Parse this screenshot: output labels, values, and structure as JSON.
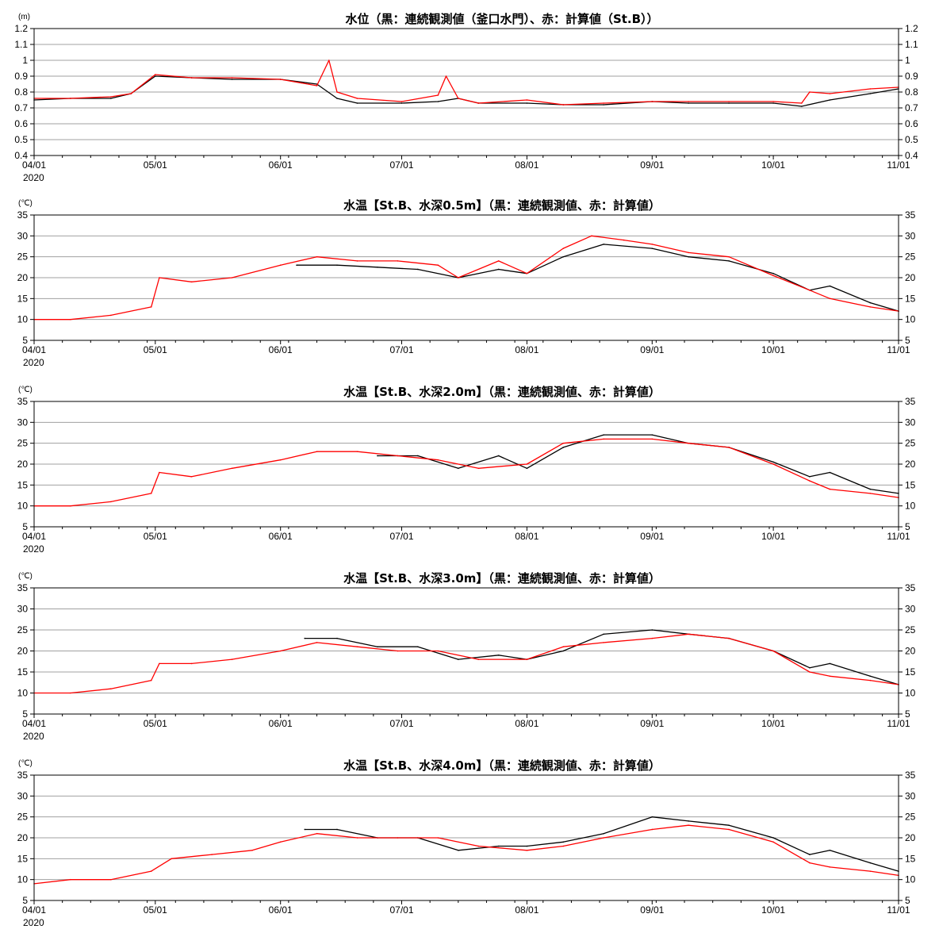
{
  "chart_data": [
    {
      "type": "line",
      "title": "水位（黒：連続観測値（釜口水門）、赤：計算値（St.B））",
      "ylabel": "(m)",
      "ylim": [
        0.4,
        1.2
      ],
      "yticks": [
        0.4,
        0.5,
        0.6,
        0.7,
        0.8,
        0.9,
        1.0,
        1.1,
        1.2
      ],
      "ytick_labels": [
        "0.4",
        "0.5",
        "0.6",
        "0.7",
        "0.8",
        "0.9",
        "1",
        "1.1",
        "1.2"
      ],
      "xlim": [
        "2020-04-01",
        "2020-11-01"
      ],
      "x_tick_labels": [
        "04/01",
        "05/01",
        "06/01",
        "07/01",
        "08/01",
        "09/01",
        "10/01",
        "11/01"
      ],
      "x_year_label": "2020",
      "grid": "horizontal",
      "series": [
        {
          "color": "#000000",
          "x": [
            "04-01",
            "04-10",
            "04-20",
            "04-25",
            "05-01",
            "05-10",
            "05-20",
            "06-01",
            "06-10",
            "06-15",
            "06-20",
            "07-01",
            "07-10",
            "07-15",
            "07-20",
            "08-01",
            "08-10",
            "08-20",
            "09-01",
            "09-10",
            "09-20",
            "10-01",
            "10-08",
            "10-15",
            "10-25",
            "11-01"
          ],
          "y": [
            0.75,
            0.76,
            0.76,
            0.79,
            0.9,
            0.89,
            0.88,
            0.88,
            0.85,
            0.76,
            0.73,
            0.73,
            0.74,
            0.76,
            0.73,
            0.73,
            0.72,
            0.72,
            0.74,
            0.73,
            0.73,
            0.73,
            0.71,
            0.75,
            0.79,
            0.82
          ]
        },
        {
          "color": "#ff0000",
          "x": [
            "04-01",
            "04-10",
            "04-20",
            "04-25",
            "05-01",
            "05-10",
            "05-20",
            "06-01",
            "06-10",
            "06-13",
            "06-15",
            "06-20",
            "07-01",
            "07-10",
            "07-12",
            "07-15",
            "07-20",
            "08-01",
            "08-10",
            "08-20",
            "09-01",
            "09-10",
            "09-20",
            "10-01",
            "10-08",
            "10-10",
            "10-15",
            "10-25",
            "11-01"
          ],
          "y": [
            0.76,
            0.76,
            0.77,
            0.79,
            0.91,
            0.89,
            0.89,
            0.88,
            0.84,
            1.0,
            0.8,
            0.76,
            0.74,
            0.78,
            0.9,
            0.76,
            0.73,
            0.75,
            0.72,
            0.73,
            0.74,
            0.74,
            0.74,
            0.74,
            0.73,
            0.8,
            0.79,
            0.82,
            0.83
          ]
        }
      ]
    },
    {
      "type": "line",
      "title": "水温【St.B、水深0.5m】（黒：連続観測値、赤：計算値）",
      "ylabel": "(℃)",
      "ylim": [
        5,
        35
      ],
      "yticks": [
        5,
        10,
        15,
        20,
        25,
        30,
        35
      ],
      "ytick_labels": [
        "5",
        "10",
        "15",
        "20",
        "25",
        "30",
        "35"
      ],
      "xlim": [
        "2020-04-01",
        "2020-11-01"
      ],
      "x_tick_labels": [
        "04/01",
        "05/01",
        "06/01",
        "07/01",
        "08/01",
        "09/01",
        "10/01",
        "11/01"
      ],
      "x_year_label": "2020",
      "grid": "horizontal",
      "series": [
        {
          "color": "#000000",
          "x": [
            "06-05",
            "06-15",
            "06-25",
            "07-05",
            "07-15",
            "07-25",
            "08-01",
            "08-10",
            "08-20",
            "09-01",
            "09-10",
            "09-20",
            "10-01",
            "10-10",
            "10-15",
            "10-25",
            "11-01"
          ],
          "y": [
            23,
            23,
            22.5,
            22,
            20,
            22,
            21,
            25,
            28,
            27,
            25,
            24,
            21,
            17,
            18,
            14,
            12
          ]
        },
        {
          "color": "#ff0000",
          "x": [
            "04-01",
            "04-10",
            "04-20",
            "04-30",
            "05-02",
            "05-10",
            "05-20",
            "06-01",
            "06-10",
            "06-20",
            "06-30",
            "07-10",
            "07-15",
            "07-25",
            "08-01",
            "08-10",
            "08-17",
            "08-25",
            "09-01",
            "09-10",
            "09-20",
            "10-01",
            "10-10",
            "10-15",
            "10-25",
            "11-01"
          ],
          "y": [
            10,
            10,
            11,
            13,
            20,
            19,
            20,
            23,
            25,
            24,
            24,
            23,
            20,
            24,
            21,
            27,
            30,
            29,
            28,
            26,
            25,
            20.5,
            17,
            15,
            13,
            12
          ]
        }
      ]
    },
    {
      "type": "line",
      "title": "水温【St.B、水深2.0m】（黒：連続観測値、赤：計算値）",
      "ylabel": "(℃)",
      "ylim": [
        5,
        35
      ],
      "yticks": [
        5,
        10,
        15,
        20,
        25,
        30,
        35
      ],
      "ytick_labels": [
        "5",
        "10",
        "15",
        "20",
        "25",
        "30",
        "35"
      ],
      "xlim": [
        "2020-04-01",
        "2020-11-01"
      ],
      "x_tick_labels": [
        "04/01",
        "05/01",
        "06/01",
        "07/01",
        "08/01",
        "09/01",
        "10/01",
        "11/01"
      ],
      "x_year_label": "2020",
      "grid": "horizontal",
      "series": [
        {
          "color": "#000000",
          "x": [
            "06-25",
            "07-05",
            "07-15",
            "07-25",
            "08-01",
            "08-10",
            "08-20",
            "09-01",
            "09-10",
            "09-20",
            "10-01",
            "10-10",
            "10-15",
            "10-25",
            "11-01"
          ],
          "y": [
            22,
            22,
            19,
            22,
            19,
            24,
            27,
            27,
            25,
            24,
            20.5,
            17,
            18,
            14,
            13
          ]
        },
        {
          "color": "#ff0000",
          "x": [
            "04-01",
            "04-10",
            "04-20",
            "04-30",
            "05-02",
            "05-10",
            "05-20",
            "06-01",
            "06-10",
            "06-20",
            "06-30",
            "07-10",
            "07-20",
            "08-01",
            "08-10",
            "08-20",
            "09-01",
            "09-10",
            "09-20",
            "10-01",
            "10-10",
            "10-15",
            "10-25",
            "11-01"
          ],
          "y": [
            10,
            10,
            11,
            13,
            18,
            17,
            19,
            21,
            23,
            23,
            22,
            21,
            19,
            20,
            25,
            26,
            26,
            25,
            24,
            20,
            16,
            14,
            13,
            12
          ]
        }
      ]
    },
    {
      "type": "line",
      "title": "水温【St.B、水深3.0m】（黒：連続観測値、赤：計算値）",
      "ylabel": "(℃)",
      "ylim": [
        5,
        35
      ],
      "yticks": [
        5,
        10,
        15,
        20,
        25,
        30,
        35
      ],
      "ytick_labels": [
        "5",
        "10",
        "15",
        "20",
        "25",
        "30",
        "35"
      ],
      "xlim": [
        "2020-04-01",
        "2020-11-01"
      ],
      "x_tick_labels": [
        "04/01",
        "05/01",
        "06/01",
        "07/01",
        "08/01",
        "09/01",
        "10/01",
        "11/01"
      ],
      "x_year_label": "2020",
      "grid": "horizontal",
      "series": [
        {
          "color": "#000000",
          "x": [
            "06-07",
            "06-15",
            "06-25",
            "07-05",
            "07-15",
            "07-25",
            "08-01",
            "08-10",
            "08-20",
            "09-01",
            "09-10",
            "09-20",
            "10-01",
            "10-10",
            "10-15",
            "10-25",
            "11-01"
          ],
          "y": [
            23,
            23,
            21,
            21,
            18,
            19,
            18,
            20,
            24,
            25,
            24,
            23,
            20,
            16,
            17,
            14,
            12
          ]
        },
        {
          "color": "#ff0000",
          "x": [
            "04-01",
            "04-10",
            "04-20",
            "04-30",
            "05-02",
            "05-10",
            "05-20",
            "06-01",
            "06-10",
            "06-20",
            "06-30",
            "07-10",
            "07-20",
            "08-01",
            "08-10",
            "08-20",
            "09-01",
            "09-10",
            "09-20",
            "10-01",
            "10-10",
            "10-15",
            "10-25",
            "11-01"
          ],
          "y": [
            10,
            10,
            11,
            13,
            17,
            17,
            18,
            20,
            22,
            21,
            20,
            20,
            18,
            18,
            21,
            22,
            23,
            24,
            23,
            20,
            15,
            14,
            13,
            12
          ]
        }
      ]
    },
    {
      "type": "line",
      "title": "水温【St.B、水深4.0m】（黒：連続観測値、赤：計算値）",
      "ylabel": "(℃)",
      "ylim": [
        5,
        35
      ],
      "yticks": [
        5,
        10,
        15,
        20,
        25,
        30,
        35
      ],
      "ytick_labels": [
        "5",
        "10",
        "15",
        "20",
        "25",
        "30",
        "35"
      ],
      "xlim": [
        "2020-04-01",
        "2020-11-01"
      ],
      "x_tick_labels": [
        "04/01",
        "05/01",
        "06/01",
        "07/01",
        "08/01",
        "09/01",
        "10/01",
        "11/01"
      ],
      "x_year_label": "2020",
      "grid": "horizontal",
      "series": [
        {
          "color": "#000000",
          "x": [
            "06-07",
            "06-15",
            "06-25",
            "07-05",
            "07-15",
            "07-25",
            "08-01",
            "08-10",
            "08-20",
            "09-01",
            "09-10",
            "09-20",
            "10-01",
            "10-10",
            "10-15",
            "10-25",
            "11-01"
          ],
          "y": [
            22,
            22,
            20,
            20,
            17,
            18,
            18,
            19,
            21,
            25,
            24,
            23,
            20,
            16,
            17,
            14,
            12
          ]
        },
        {
          "color": "#ff0000",
          "x": [
            "04-01",
            "04-10",
            "04-20",
            "04-30",
            "05-05",
            "05-15",
            "05-25",
            "06-01",
            "06-10",
            "06-20",
            "06-30",
            "07-10",
            "07-20",
            "08-01",
            "08-10",
            "08-20",
            "09-01",
            "09-10",
            "09-20",
            "10-01",
            "10-10",
            "10-15",
            "10-25",
            "11-01"
          ],
          "y": [
            9,
            10,
            10,
            12,
            15,
            16,
            17,
            19,
            21,
            20,
            20,
            20,
            18,
            17,
            18,
            20,
            22,
            23,
            22,
            19,
            14,
            13,
            12,
            11
          ]
        }
      ]
    }
  ]
}
